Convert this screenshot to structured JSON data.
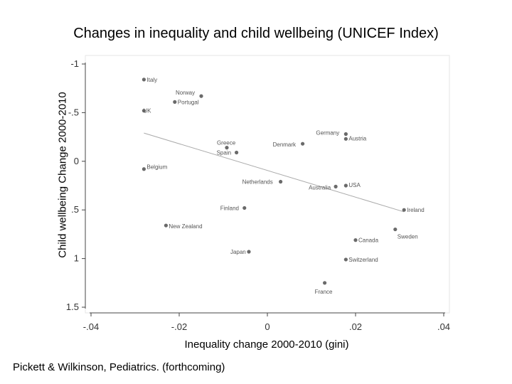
{
  "title": "Changes in inequality and child wellbeing (UNICEF Index)",
  "source": "Pickett & Wilkinson, Pediatrics. (forthcoming)",
  "chart_data": {
    "type": "scatter",
    "title": "Changes in inequality and child wellbeing (UNICEF Index)",
    "xlabel": "Inequality change 2000-2010 (gini)",
    "ylabel": "Child wellbeing Change 2000-2010",
    "xlim": [
      -0.04,
      0.04
    ],
    "ylim": [
      -1,
      1.5
    ],
    "y_inverted": true,
    "xticks": [
      -0.04,
      -0.02,
      0,
      0.02,
      0.04
    ],
    "xtick_labels": [
      "-.04",
      "-.02",
      "0",
      ".02",
      ".04"
    ],
    "yticks": [
      -1,
      -0.5,
      0,
      0.5,
      1,
      1.5
    ],
    "ytick_labels": [
      "-1",
      "-.5",
      "0",
      ".5",
      "1",
      "1.5"
    ],
    "grid": false,
    "points": [
      {
        "label": "Italy",
        "x": -0.028,
        "y": -0.84
      },
      {
        "label": "Norway",
        "x": -0.015,
        "y": -0.67
      },
      {
        "label": "Portugal",
        "x": -0.021,
        "y": -0.61
      },
      {
        "label": "UK",
        "x": -0.028,
        "y": -0.52
      },
      {
        "label": "Germany",
        "x": 0.0178,
        "y": -0.28
      },
      {
        "label": "Austria",
        "x": 0.0178,
        "y": -0.23
      },
      {
        "label": "Denmark",
        "x": 0.008,
        "y": -0.18
      },
      {
        "label": "Greece",
        "x": -0.0092,
        "y": -0.14
      },
      {
        "label": "Spain",
        "x": -0.007,
        "y": -0.09
      },
      {
        "label": "Belgium",
        "x": -0.028,
        "y": 0.08
      },
      {
        "label": "Netherlands",
        "x": 0.003,
        "y": 0.21
      },
      {
        "label": "Australia",
        "x": 0.0155,
        "y": 0.26
      },
      {
        "label": "USA",
        "x": 0.0178,
        "y": 0.25
      },
      {
        "label": "Finland",
        "x": -0.0052,
        "y": 0.48
      },
      {
        "label": "Ireland",
        "x": 0.031,
        "y": 0.5
      },
      {
        "label": "New Zealand",
        "x": -0.023,
        "y": 0.66
      },
      {
        "label": "Sweden",
        "x": 0.029,
        "y": 0.7
      },
      {
        "label": "Canada",
        "x": 0.02,
        "y": 0.81
      },
      {
        "label": "Japan",
        "x": -0.0042,
        "y": 0.93
      },
      {
        "label": "Switzerland",
        "x": 0.0178,
        "y": 1.01
      },
      {
        "label": "France",
        "x": 0.013,
        "y": 1.25
      }
    ],
    "fit_line": {
      "x": [
        -0.028,
        0.031
      ],
      "y": [
        -0.29,
        0.52
      ]
    }
  }
}
